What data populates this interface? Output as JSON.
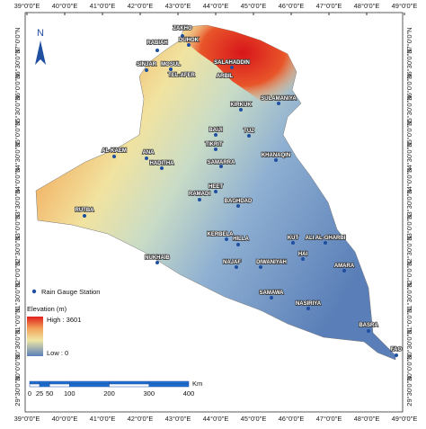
{
  "map": {
    "north": "N",
    "longitude_labels": [
      "39°0'0\"E",
      "40°0'0\"E",
      "41°0'0\"E",
      "42°0'0\"E",
      "43°0'0\"E",
      "44°0'0\"E",
      "45°0'0\"E",
      "46°0'0\"E",
      "47°0'0\"E",
      "48°0'0\"E",
      "49°0'0\"E"
    ],
    "latitude_labels": [
      "37°0'0\"N",
      "36°30'0\"N",
      "36°0'0\"N",
      "35°30'0\"N",
      "35°0'0\"N",
      "34°30'0\"N",
      "34°0'0\"N",
      "33°30'0\"N",
      "33°0'0\"N",
      "32°30'0\"N",
      "32°0'0\"N",
      "31°30'0\"N",
      "31°0'0\"N",
      "30°30'0\"N",
      "30°0'0\"N",
      "29°30'0\"N"
    ],
    "stations": [
      "ZAKHO",
      "DUHOK",
      "RABIAH",
      "SINJAR",
      "MOSUL",
      "TEL-AFER",
      "SALAHADDIN",
      "ARBIL",
      "KIRKUK",
      "SULAMANIYA",
      "BAIJI",
      "TUZ",
      "TIKRIT",
      "KHANAQIN",
      "AL-KAEM",
      "ANA",
      "HADITHA",
      "SAMARRA",
      "HEET",
      "RAMADI",
      "BAGHDAD",
      "RUTBA",
      "KERBELA",
      "HILLA",
      "KUT",
      "ALI AL-GHARBI",
      "HAI",
      "NAJAF",
      "DIWANIYAH",
      "NUKHAIB",
      "AMARA",
      "SAMAWA",
      "NASIRIYA",
      "BASRA",
      "FAO"
    ],
    "legend": {
      "station": "Rain Gauge Station",
      "elevation_title": "Elevation (m)",
      "high": "High : 3601",
      "low": "Low : 0"
    },
    "scale": {
      "unit": "Km",
      "ticks": [
        0,
        25,
        50,
        100,
        200,
        300,
        400
      ]
    }
  }
}
